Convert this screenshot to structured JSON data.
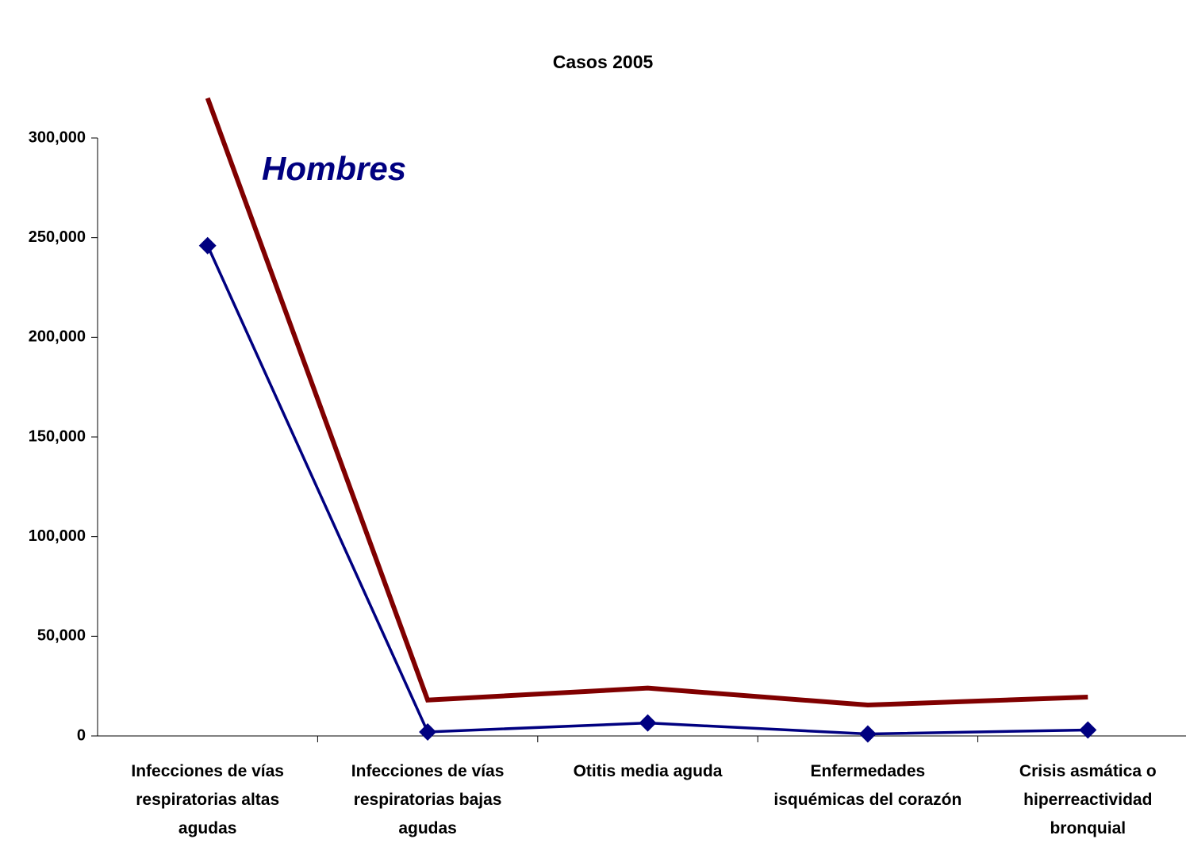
{
  "chart_data": {
    "type": "line",
    "title": "Casos 2005",
    "categories": [
      "Infecciones  de vías respiratorias altas agudas",
      "Infecciones de vías respiratorias bajas agudas",
      "Otitis media aguda",
      "Enfermedades isquémicas del corazón",
      "Crisis asmática o hiperreactividad bronquial"
    ],
    "series": [
      {
        "name": "Hombres",
        "color": "#000080",
        "marker": "diamond",
        "values": [
          246000,
          2000,
          6500,
          1000,
          3000
        ]
      },
      {
        "color": "#800000",
        "values": [
          320000,
          18000,
          24000,
          15500,
          19500
        ]
      }
    ],
    "ylim": [
      0,
      300000
    ],
    "yticks": [
      0,
      {
        "value": 50000,
        "label": "50,000"
      },
      {
        "value": 100000,
        "label": "100,000"
      },
      {
        "value": 150000,
        "label": "150,000"
      },
      {
        "value": 200000,
        "label": "200,000"
      },
      {
        "value": 250000,
        "label": "250,000"
      },
      {
        "value": 300000,
        "label": "300,000"
      }
    ],
    "grid": false
  }
}
